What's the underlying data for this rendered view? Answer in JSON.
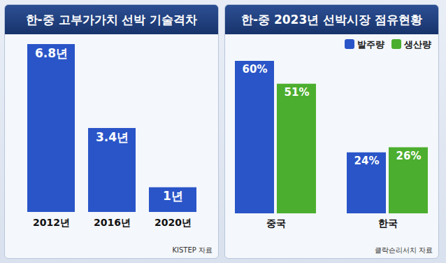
{
  "chart_data": [
    {
      "type": "bar",
      "title": "한-중 고부가가치 선박 기술격차",
      "categories": [
        "2012년",
        "2016년",
        "2020년"
      ],
      "values": [
        6.8,
        3.4,
        1
      ],
      "value_labels": [
        "6.8년",
        "3.4년",
        "1년"
      ],
      "color": "#2a55c8",
      "data_labels": true,
      "tick_labels": "x",
      "source": "KISTEP 자료"
    },
    {
      "type": "bar",
      "title": "한-중 2023년 선박시장 점유현황",
      "categories": [
        "중국",
        "한국"
      ],
      "series": [
        {
          "name": "발주량",
          "color": "#2a55c8",
          "values": [
            60,
            24
          ],
          "value_labels": [
            "60%",
            "24%"
          ]
        },
        {
          "name": "생산량",
          "color": "#4cae2e",
          "values": [
            51,
            26
          ],
          "value_labels": [
            "51%",
            "26%"
          ]
        }
      ],
      "legend": "top-right",
      "data_labels": true,
      "tick_labels": "x",
      "source": "클락슨리서치 자료"
    }
  ]
}
